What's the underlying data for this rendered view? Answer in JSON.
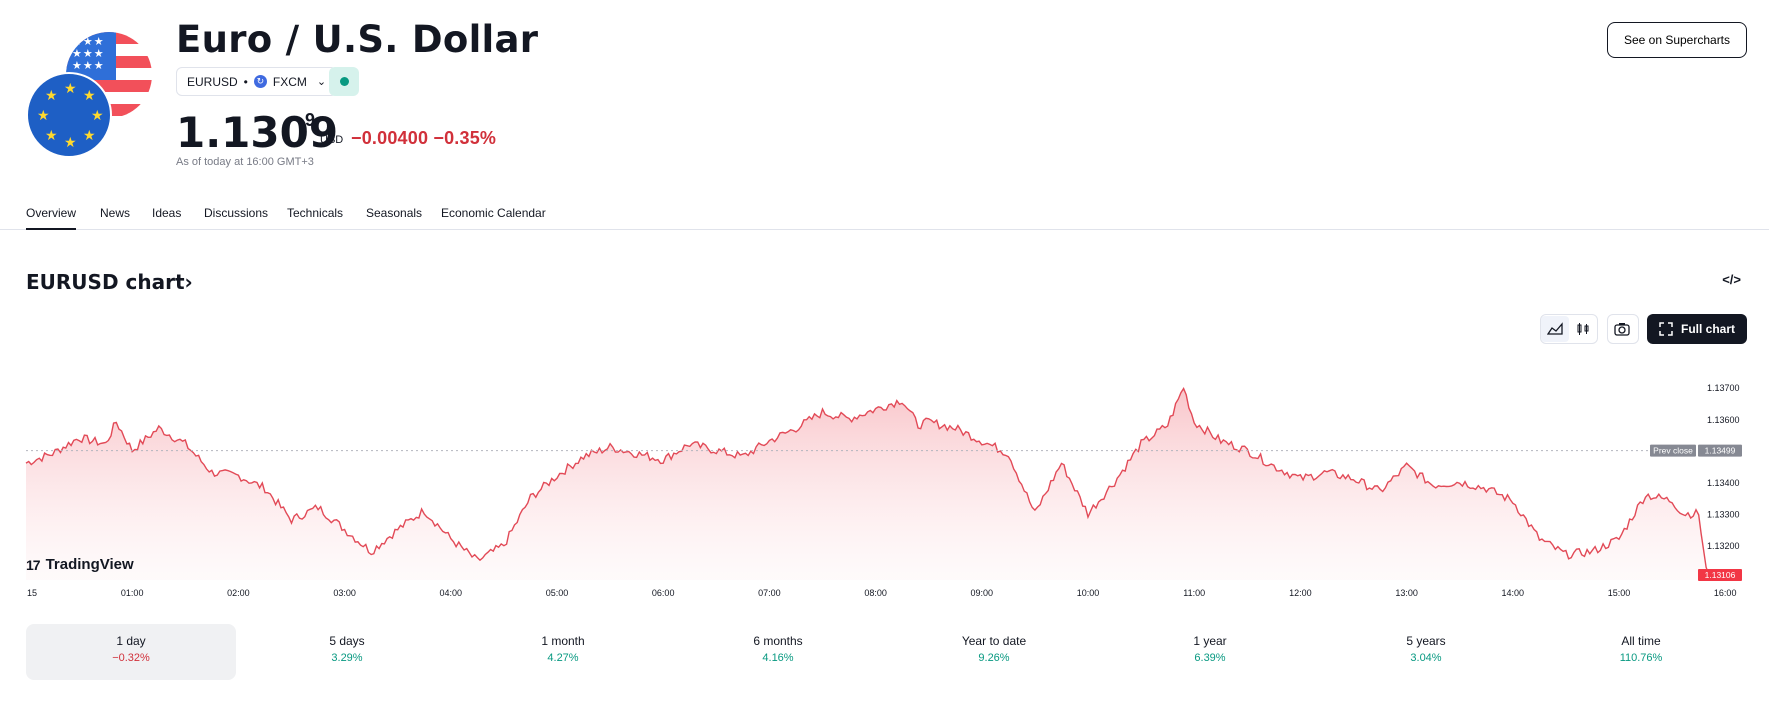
{
  "header": {
    "title": "Euro / U.S. Dollar",
    "symbol": "EURUSD",
    "exchange": "FXCM",
    "price_main": "1.1309",
    "price_sup": "9",
    "currency": "USD",
    "change": "−0.00400 −0.35%",
    "as_of": "As of today at 16:00 GMT+3",
    "supercharts_label": "See on Supercharts",
    "status_color": "#089981"
  },
  "tabs": [
    "Overview",
    "News",
    "Ideas",
    "Discussions",
    "Technicals",
    "Seasonals",
    "Economic Calendar"
  ],
  "active_tab": "Overview",
  "chart_section": {
    "heading": "EURUSD chart",
    "heading_chevron": "›",
    "embed_icon": "code-icon",
    "fullchart_label": "Full chart",
    "brand": "TradingView",
    "toolbar_icons": [
      "area-chart-icon",
      "candles-icon",
      "camera-icon",
      "fullscreen-icon"
    ]
  },
  "chart_data": {
    "type": "area",
    "line_color": "#e24a57",
    "x_ticks": [
      "15",
      "01:00",
      "02:00",
      "03:00",
      "04:00",
      "05:00",
      "06:00",
      "07:00",
      "08:00",
      "09:00",
      "10:00",
      "11:00",
      "12:00",
      "13:00",
      "14:00",
      "15:00",
      "16:00"
    ],
    "y_ticks": [
      "1.13700",
      "1.13600",
      "1.13400",
      "1.13300",
      "1.13200"
    ],
    "ylim": [
      1.1309,
      1.1377
    ],
    "prev_close": {
      "label": "Prev close",
      "value": "1.13499"
    },
    "last_value": "1.13106",
    "x": [
      0.0,
      0.25,
      0.5,
      0.75,
      0.85,
      1.0,
      1.25,
      1.5,
      1.75,
      2.0,
      2.25,
      2.5,
      2.75,
      3.0,
      3.25,
      3.5,
      3.75,
      4.0,
      4.25,
      4.5,
      4.75,
      5.0,
      5.25,
      5.5,
      5.75,
      6.0,
      6.25,
      6.5,
      6.75,
      7.0,
      7.25,
      7.5,
      7.75,
      8.0,
      8.25,
      8.4,
      8.5,
      8.75,
      9.0,
      9.25,
      9.5,
      9.75,
      10.0,
      10.25,
      10.5,
      10.75,
      10.9,
      11.0,
      11.25,
      11.5,
      11.75,
      12.0,
      12.25,
      12.5,
      12.75,
      13.0,
      13.25,
      13.5,
      13.75,
      14.0,
      14.25,
      14.5,
      14.75,
      15.0,
      15.25,
      15.5,
      15.6,
      15.75,
      15.82,
      15.9
    ],
    "y": [
      1.1346,
      1.1349,
      1.1354,
      1.1352,
      1.1359,
      1.135,
      1.1357,
      1.1352,
      1.1343,
      1.1342,
      1.1338,
      1.1328,
      1.1332,
      1.1325,
      1.1318,
      1.1325,
      1.1331,
      1.1322,
      1.1315,
      1.132,
      1.1335,
      1.1342,
      1.1348,
      1.1351,
      1.1349,
      1.1347,
      1.1352,
      1.135,
      1.1348,
      1.1353,
      1.1357,
      1.1362,
      1.136,
      1.1363,
      1.1366,
      1.1358,
      1.1359,
      1.1357,
      1.1353,
      1.1349,
      1.133,
      1.1346,
      1.133,
      1.134,
      1.1352,
      1.1358,
      1.137,
      1.1359,
      1.1353,
      1.135,
      1.1345,
      1.1341,
      1.1343,
      1.1341,
      1.1337,
      1.1345,
      1.1339,
      1.134,
      1.1338,
      1.1334,
      1.1322,
      1.1317,
      1.1318,
      1.1322,
      1.1336,
      1.1334,
      1.133,
      1.133,
      1.1312,
      1.131
    ]
  },
  "periods": [
    {
      "label": "1 day",
      "value": "−0.32%",
      "trend": "neg"
    },
    {
      "label": "5 days",
      "value": "3.29%",
      "trend": "pos"
    },
    {
      "label": "1 month",
      "value": "4.27%",
      "trend": "pos"
    },
    {
      "label": "6 months",
      "value": "4.16%",
      "trend": "pos"
    },
    {
      "label": "Year to date",
      "value": "9.26%",
      "trend": "pos"
    },
    {
      "label": "1 year",
      "value": "6.39%",
      "trend": "pos"
    },
    {
      "label": "5 years",
      "value": "3.04%",
      "trend": "pos"
    },
    {
      "label": "All time",
      "value": "110.76%",
      "trend": "pos"
    }
  ]
}
